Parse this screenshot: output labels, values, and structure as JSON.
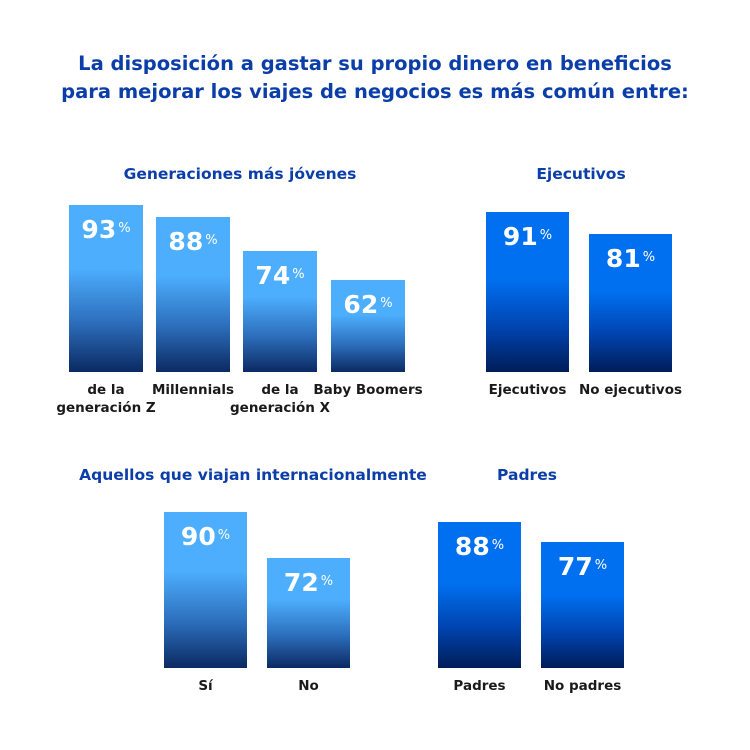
{
  "title_lines": [
    "La disposición a gastar su propio dinero en beneficios",
    "para mejorar los viajes de negocios es más común entre:"
  ],
  "colors": {
    "title": "#0b3ea8",
    "light_bar_top": "#4caefd",
    "dark_bar_top": "#0070f0"
  },
  "chart_data": [
    {
      "type": "bar",
      "title": "Generaciones más jóvenes",
      "unit": "%",
      "style": "light",
      "categories": [
        "de la generación Z",
        "Millennials",
        "de la generación X",
        "Baby Boomers"
      ],
      "values": [
        93,
        88,
        74,
        62
      ]
    },
    {
      "type": "bar",
      "title": "Ejecutivos",
      "unit": "%",
      "style": "dark",
      "categories": [
        "Ejecutivos",
        "No ejecutivos"
      ],
      "values": [
        91,
        81
      ]
    },
    {
      "type": "bar",
      "title": "Aquellos que viajan internacionalmente",
      "unit": "%",
      "style": "light",
      "categories": [
        "Sí",
        "No"
      ],
      "values": [
        90,
        72
      ]
    },
    {
      "type": "bar",
      "title": "Padres",
      "unit": "%",
      "style": "dark",
      "categories": [
        "Padres",
        "No padres"
      ],
      "values": [
        88,
        77
      ]
    }
  ]
}
